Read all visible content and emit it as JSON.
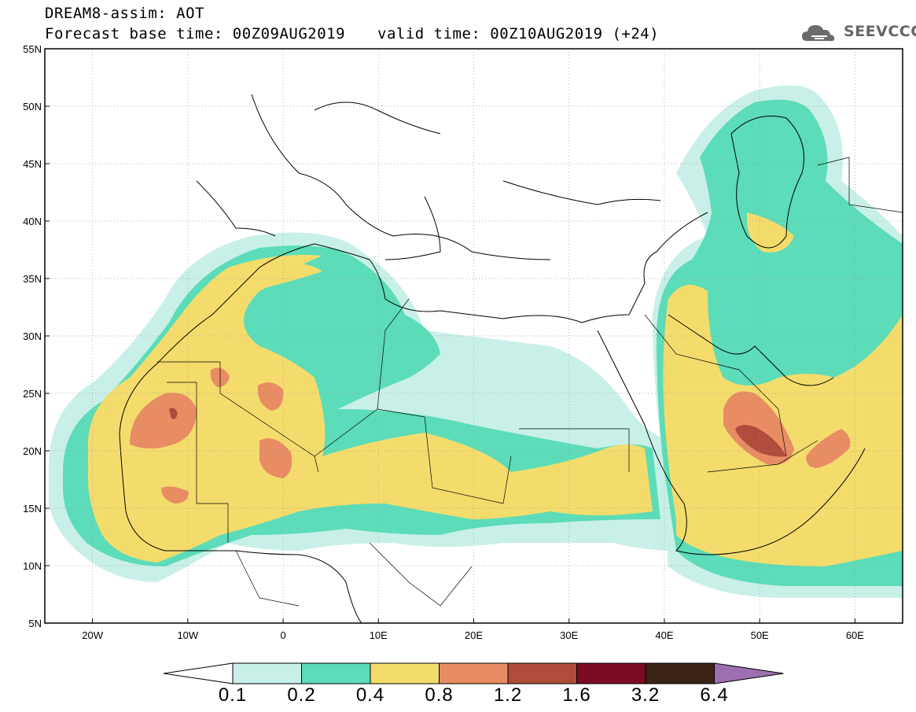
{
  "title": {
    "line1": "DREAM8-assim: AOT",
    "line2": "Forecast base time: 00Z09AUG2019",
    "valid": "valid time: 00Z10AUG2019 (+24)"
  },
  "logo": {
    "text": "SEEVCCC",
    "icon": "cloud-icon"
  },
  "map": {
    "lat_range": [
      5,
      55
    ],
    "lon_range": [
      -25,
      65
    ],
    "lat_ticks": [
      "55N",
      "50N",
      "45N",
      "40N",
      "35N",
      "30N",
      "25N",
      "20N",
      "15N",
      "10N",
      "5N"
    ],
    "lon_ticks": [
      "20W",
      "10W",
      "0",
      "10E",
      "20E",
      "30E",
      "40E",
      "50E",
      "60E"
    ],
    "grid": "dotted",
    "variable": "AOT"
  },
  "colorbar": {
    "levels": [
      "0.1",
      "0.2",
      "0.4",
      "0.8",
      "1.2",
      "1.6",
      "3.2",
      "6.4"
    ],
    "colors": [
      "#c8f0e8",
      "#5cdcb8",
      "#f4dc6c",
      "#e88c64",
      "#b04c3c",
      "#7c0c24",
      "#3c2414",
      "#9c70b0"
    ]
  },
  "palette": {
    "very_light": "#c8f0e8",
    "teal": "#5cdcb8",
    "yellow": "#f4dc6c",
    "orange": "#e88c64",
    "brown": "#b04c3c"
  }
}
